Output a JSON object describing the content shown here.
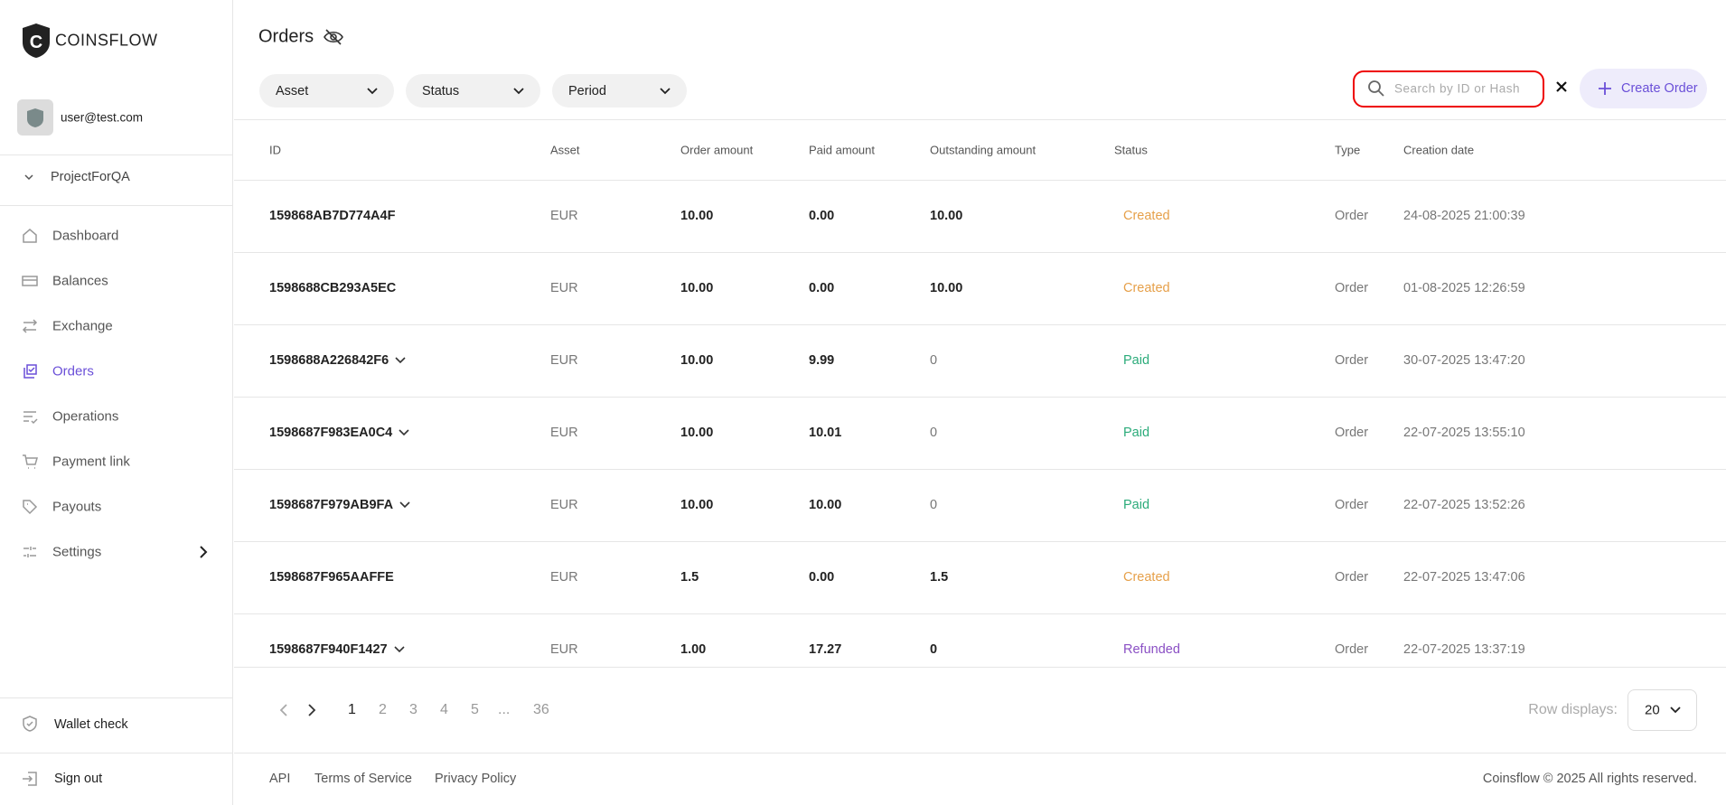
{
  "brand": "COINSFLOW",
  "user": {
    "email": "user@test.com"
  },
  "project": "ProjectForQA",
  "nav": [
    {
      "label": "Dashboard",
      "active": false
    },
    {
      "label": "Balances",
      "active": false
    },
    {
      "label": "Exchange",
      "active": false
    },
    {
      "label": "Orders",
      "active": true
    },
    {
      "label": "Operations",
      "active": false
    },
    {
      "label": "Payment link",
      "active": false
    },
    {
      "label": "Payouts",
      "active": false
    },
    {
      "label": "Settings",
      "active": false,
      "submenu": true
    }
  ],
  "sidebar_bottom": {
    "wallet_check": "Wallet check",
    "sign_out": "Sign out"
  },
  "header": {
    "title": "Orders",
    "filters": [
      "Asset",
      "Status",
      "Period"
    ],
    "search_placeholder": "Search by ID or Hash",
    "create_button": "Create Order"
  },
  "table": {
    "columns": [
      "ID",
      "Asset",
      "Order amount",
      "Paid amount",
      "Outstanding amount",
      "Status",
      "Type",
      "Creation date"
    ],
    "rows": [
      {
        "id": "159868AB7D774A4F",
        "asset": "EUR",
        "order_amount": "10.00",
        "paid_amount": "0.00",
        "outstanding": "10.00",
        "status": "Created",
        "status_color": "#e6a04a",
        "type": "Order",
        "date": "24-08-2025 21:00:39",
        "expandable": false
      },
      {
        "id": "1598688CB293A5EC",
        "asset": "EUR",
        "order_amount": "10.00",
        "paid_amount": "0.00",
        "outstanding": "10.00",
        "status": "Created",
        "status_color": "#e6a04a",
        "type": "Order",
        "date": "01-08-2025 12:26:59",
        "expandable": false
      },
      {
        "id": "1598688A226842F6",
        "asset": "EUR",
        "order_amount": "10.00",
        "paid_amount": "9.99",
        "outstanding": "0",
        "status": "Paid",
        "status_color": "#2bab7a",
        "type": "Order",
        "date": "30-07-2025 13:47:20",
        "expandable": true
      },
      {
        "id": "1598687F983EA0C4",
        "asset": "EUR",
        "order_amount": "10.00",
        "paid_amount": "10.01",
        "outstanding": "0",
        "status": "Paid",
        "status_color": "#2bab7a",
        "type": "Order",
        "date": "22-07-2025 13:55:10",
        "expandable": true
      },
      {
        "id": "1598687F979AB9FA",
        "asset": "EUR",
        "order_amount": "10.00",
        "paid_amount": "10.00",
        "outstanding": "0",
        "status": "Paid",
        "status_color": "#2bab7a",
        "type": "Order",
        "date": "22-07-2025 13:52:26",
        "expandable": true
      },
      {
        "id": "1598687F965AAFFE",
        "asset": "EUR",
        "order_amount": "1.5",
        "paid_amount": "0.00",
        "outstanding": "1.5",
        "status": "Created",
        "status_color": "#e6a04a",
        "type": "Order",
        "date": "22-07-2025 13:47:06",
        "expandable": false
      },
      {
        "id": "1598687F940F1427",
        "asset": "EUR",
        "order_amount": "1.00",
        "paid_amount": "17.27",
        "outstanding": "0",
        "status": "Refunded",
        "status_color": "#8a4fc4",
        "type": "Order",
        "date": "22-07-2025 13:37:19",
        "expandable": true
      }
    ]
  },
  "pagination": {
    "pages": [
      "1",
      "2",
      "3",
      "4",
      "5",
      "...",
      "36"
    ],
    "current": 0,
    "rows_label": "Row displays:",
    "rows_value": "20"
  },
  "footer": {
    "links": [
      "API",
      "Terms of Service",
      "Privacy Policy"
    ],
    "copyright": "Coinsflow © 2025 All rights reserved."
  }
}
